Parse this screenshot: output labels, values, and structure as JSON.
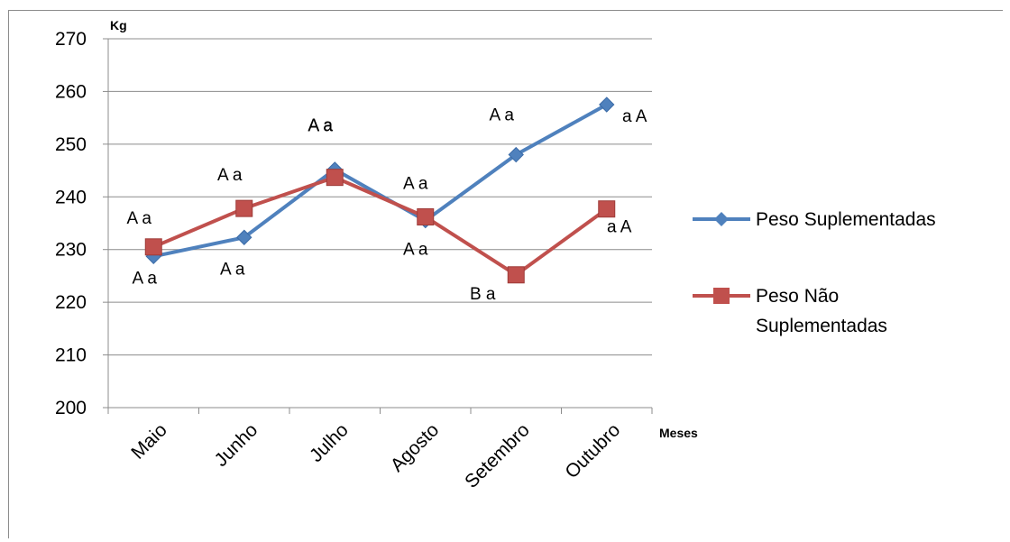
{
  "chart_data": {
    "type": "line",
    "ylabel": "Kg",
    "xlabel": "Meses",
    "ylim": [
      200,
      270
    ],
    "yticks": [
      200,
      210,
      220,
      230,
      240,
      250,
      260,
      270
    ],
    "categories": [
      "Maio",
      "Junho",
      "Julho",
      "Agosto",
      "Setembro",
      "Outubro"
    ],
    "grid": true,
    "legend_position": "right",
    "series": [
      {
        "name": "Peso Suplementadas",
        "color": "#4f81bd",
        "marker": "diamond",
        "values": [
          228.7,
          232.3,
          245.2,
          235.5,
          248.0,
          257.5
        ],
        "labels": [
          "A a",
          "A a",
          "A a",
          "A a",
          "A a",
          "a A"
        ]
      },
      {
        "name": "Peso Não Suplementadas",
        "color": "#c0504d",
        "marker": "square",
        "values": [
          230.5,
          237.8,
          243.7,
          236.2,
          225.2,
          237.7
        ],
        "labels": [
          "A a",
          "A a",
          "A a",
          "A a",
          "B a",
          "a A"
        ]
      }
    ]
  }
}
